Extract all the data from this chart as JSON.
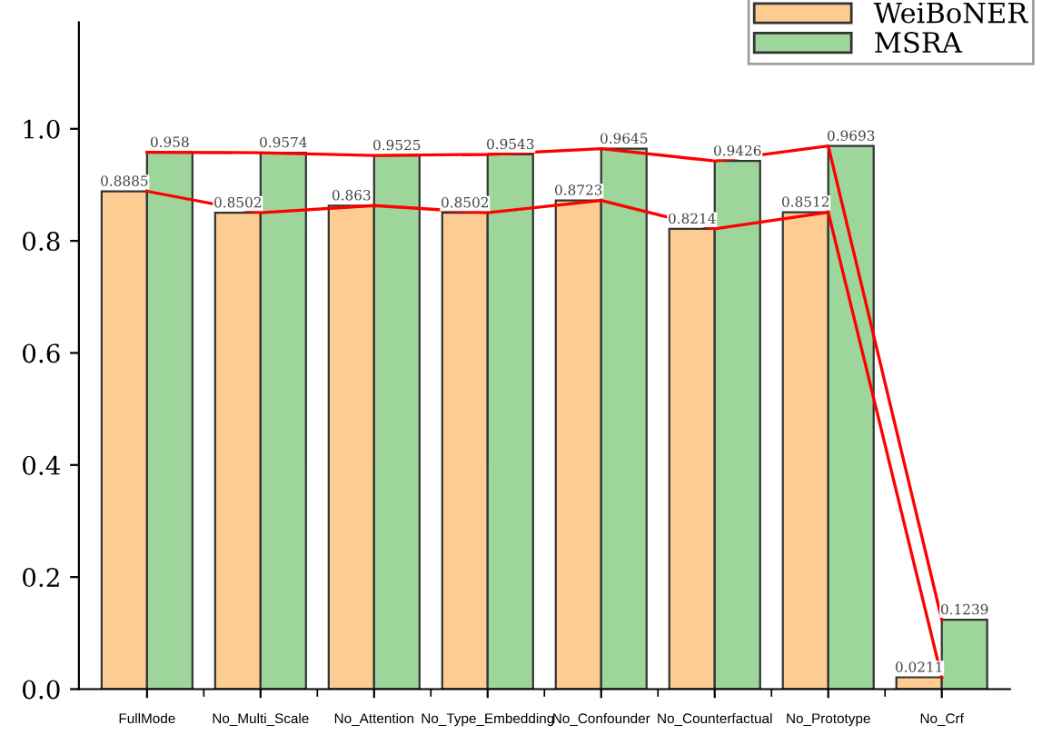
{
  "chart_data": {
    "type": "bar",
    "categories": [
      "FullMode",
      "No_Multi_Scale",
      "No_Attention",
      "No_Type_Embedding",
      "No_Confounder",
      "No_Counterfactual",
      "No_Prototype",
      "No_Crf"
    ],
    "series": [
      {
        "name": "WeiBoNER",
        "color": "#fdcc92",
        "values": [
          0.8885,
          0.8502,
          0.863,
          0.8502,
          0.8723,
          0.8214,
          0.8512,
          0.0211
        ],
        "value_labels": [
          "0.8885",
          "0.8502",
          "0.863",
          "0.8502",
          "0.8723",
          "0.8214",
          "0.8512",
          "0.0211"
        ]
      },
      {
        "name": "MSRA",
        "color": "#9ed59a",
        "values": [
          0.958,
          0.9574,
          0.9525,
          0.9543,
          0.9645,
          0.9426,
          0.9693,
          0.1239
        ],
        "value_labels": [
          "0.958",
          "0.9574",
          "0.9525",
          "0.9543",
          "0.9645",
          "0.9426",
          "0.9693",
          "0.1239"
        ]
      },
      {
        "type": "line",
        "color": "#ff0000",
        "values": [
          0.8885,
          0.8502,
          0.863,
          0.8502,
          0.8723,
          0.8214,
          0.8512,
          0.0211
        ]
      },
      {
        "type": "line",
        "color": "#ff0000",
        "values": [
          0.958,
          0.9574,
          0.9525,
          0.9543,
          0.9645,
          0.9426,
          0.9693,
          0.1239
        ]
      }
    ],
    "ylim": [
      0,
      1.19
    ],
    "yticks": [
      {
        "value": 0,
        "label": "0.0"
      },
      0.2,
      0.4,
      0.6,
      0.8,
      {
        "value": 1,
        "label": "1.0"
      }
    ],
    "legend": "top right",
    "grid": false
  }
}
